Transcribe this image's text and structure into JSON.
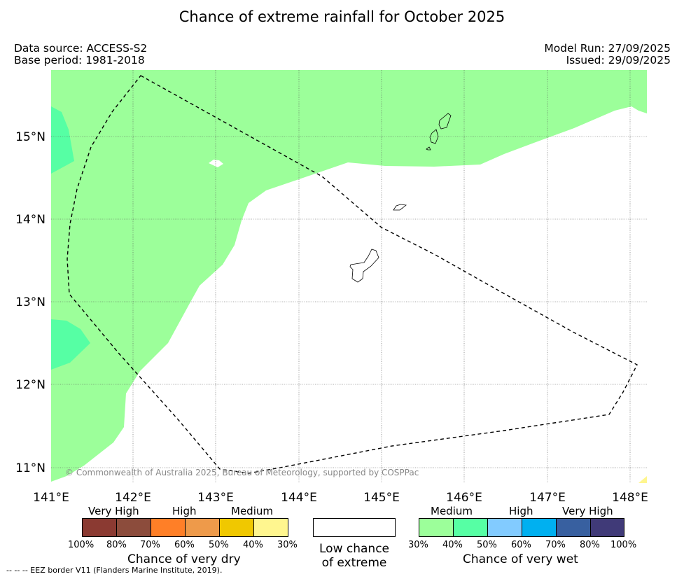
{
  "title": "Chance of extreme rainfall for October 2025",
  "data_source": "Data source: ACCESS-S2",
  "base_period": "Base period: 1981-2018",
  "model_run": "Model Run: 27/09/2025",
  "issued": "Issued: 29/09/2025",
  "copyright": "© Commonwealth of Australia 2025, Bureau of Meteorology, supported by COSPPac",
  "axes": {
    "lon_ticks": [
      "141°E",
      "142°E",
      "143°E",
      "144°E",
      "145°E",
      "146°E",
      "147°E",
      "148°E"
    ],
    "lat_ticks": [
      "15°N",
      "14°N",
      "13°N",
      "12°N",
      "11°N"
    ]
  },
  "legend_dry": {
    "headers": [
      "Very High",
      "High",
      "Medium"
    ],
    "labels": [
      "100%",
      "80%",
      "70%",
      "60%",
      "50%",
      "40%",
      "30%"
    ],
    "colors": [
      "#8b3a32",
      "#8c4c3c",
      "#ff7f27",
      "#ee9a4a",
      "#f0c800",
      "#fff68f"
    ],
    "title": "Chance of very dry"
  },
  "legend_low": {
    "line1": "Low chance",
    "line2": "of extreme"
  },
  "legend_wet": {
    "headers": [
      "Medium",
      "High",
      "Very High"
    ],
    "labels": [
      "30%",
      "40%",
      "50%",
      "60%",
      "70%",
      "80%",
      "100%"
    ],
    "colors": [
      "#9cff9a",
      "#56ffa4",
      "#82cbff",
      "#00b0f0",
      "#3860a0",
      "#403a78"
    ],
    "title": "Chance of very wet"
  },
  "footnote": "--  --  -- EEZ border V11 (Flanders Marine Institute, 2019).",
  "colors": {
    "medium_wet": "#9cff9a",
    "high_wet": "#56ffa4",
    "medium_dry": "#fff68f",
    "grid": "#555555"
  }
}
